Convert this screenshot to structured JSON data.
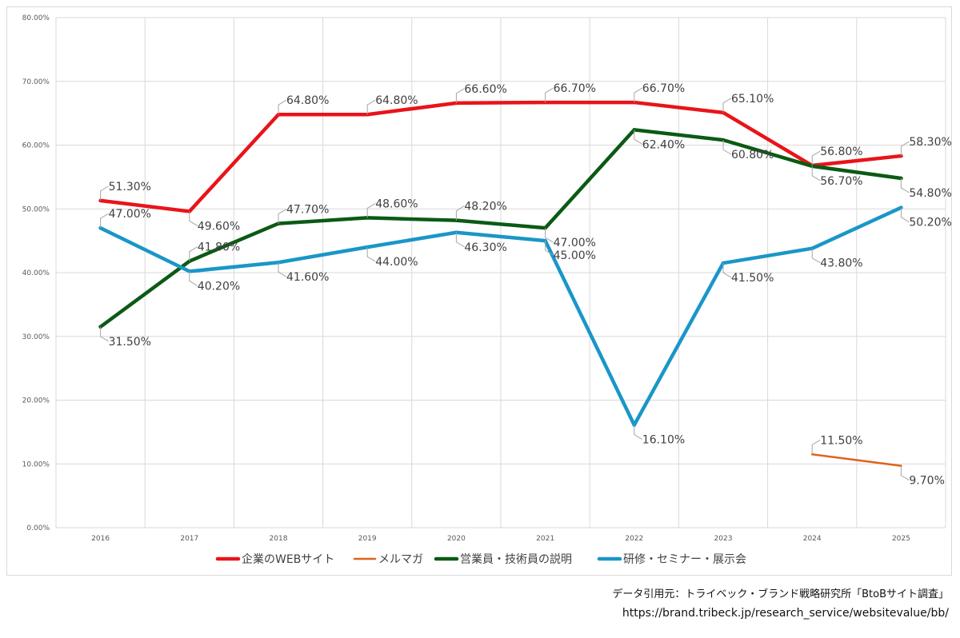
{
  "chart_data": {
    "type": "line",
    "title": "",
    "xlabel": "",
    "ylabel": "",
    "categories": [
      "2016",
      "2017",
      "2018",
      "2019",
      "2020",
      "2021",
      "2022",
      "2023",
      "2024",
      "2025"
    ],
    "ylim": [
      0,
      80
    ],
    "yticks": [
      "0.00%",
      "10.00%",
      "20.00%",
      "30.00%",
      "40.00%",
      "50.00%",
      "60.00%",
      "70.00%",
      "80.00%"
    ],
    "grid": true,
    "legend_position": "bottom",
    "series": [
      {
        "name": "企業のWEBサイト",
        "color": "#e8141a",
        "values": [
          51.3,
          49.6,
          64.8,
          64.8,
          66.6,
          66.7,
          66.7,
          65.1,
          56.8,
          58.3
        ],
        "labels": [
          "51.30%",
          "49.60%",
          "64.80%",
          "64.80%",
          "66.60%",
          "66.70%",
          "66.70%",
          "65.10%",
          "56.80%",
          "58.30%"
        ]
      },
      {
        "name": "メルマガ",
        "color": "#e0621b",
        "values": [
          null,
          null,
          null,
          null,
          null,
          null,
          null,
          null,
          11.5,
          9.7
        ],
        "labels": [
          null,
          null,
          null,
          null,
          null,
          null,
          null,
          null,
          "11.50%",
          "9.70%"
        ]
      },
      {
        "name": "営業員・技術員の説明",
        "color": "#0b5a14",
        "values": [
          31.5,
          41.8,
          47.7,
          48.6,
          48.2,
          47.0,
          62.4,
          60.8,
          56.7,
          54.8
        ],
        "labels": [
          "31.50%",
          "41.80%",
          "47.70%",
          "48.60%",
          "48.20%",
          "47.00%",
          "62.40%",
          "60.80%",
          "56.70%",
          "54.80%"
        ]
      },
      {
        "name": "研修・セミナー・展示会",
        "color": "#1a96c8",
        "values": [
          47.0,
          40.2,
          41.6,
          44.0,
          46.3,
          45.0,
          16.1,
          41.5,
          43.8,
          50.2
        ],
        "labels": [
          "47.00%",
          "40.20%",
          "41.60%",
          "44.00%",
          "46.30%",
          "45.00%",
          "16.10%",
          "41.50%",
          "43.80%",
          "50.20%"
        ]
      }
    ]
  },
  "source": {
    "label": "データ引用元：トライベック・ブランド戦略研究所「BtoBサイト調査」",
    "url": "https://brand.tribeck.jp/research_service/websitevalue/bb/"
  }
}
